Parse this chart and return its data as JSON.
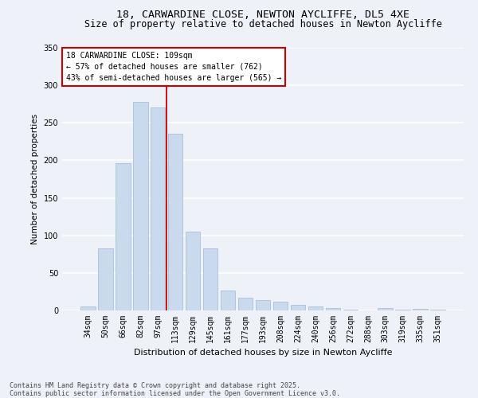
{
  "title1": "18, CARWARDINE CLOSE, NEWTON AYCLIFFE, DL5 4XE",
  "title2": "Size of property relative to detached houses in Newton Aycliffe",
  "xlabel": "Distribution of detached houses by size in Newton Aycliffe",
  "ylabel": "Number of detached properties",
  "categories": [
    "34sqm",
    "50sqm",
    "66sqm",
    "82sqm",
    "97sqm",
    "113sqm",
    "129sqm",
    "145sqm",
    "161sqm",
    "177sqm",
    "193sqm",
    "208sqm",
    "224sqm",
    "240sqm",
    "256sqm",
    "272sqm",
    "288sqm",
    "303sqm",
    "319sqm",
    "335sqm",
    "351sqm"
  ],
  "values": [
    5,
    83,
    196,
    278,
    270,
    235,
    105,
    83,
    26,
    17,
    14,
    12,
    7,
    5,
    3,
    1,
    0,
    3,
    1,
    2,
    1
  ],
  "bar_color": "#c9d9ee",
  "bar_edge_color": "#a0b8d8",
  "vline_x": 4.5,
  "vline_color": "#cc0000",
  "annotation_text": "18 CARWARDINE CLOSE: 109sqm\n← 57% of detached houses are smaller (762)\n43% of semi-detached houses are larger (565) →",
  "annotation_box_color": "#ffffff",
  "annotation_box_edge": "#cc0000",
  "ylim": [
    0,
    350
  ],
  "yticks": [
    0,
    50,
    100,
    150,
    200,
    250,
    300,
    350
  ],
  "footer": "Contains HM Land Registry data © Crown copyright and database right 2025.\nContains public sector information licensed under the Open Government Licence v3.0.",
  "background_color": "#eef2f8",
  "grid_color": "#ffffff",
  "title_fontsize": 9.5,
  "subtitle_fontsize": 8.5,
  "tick_fontsize": 7,
  "ylabel_fontsize": 7.5,
  "xlabel_fontsize": 8,
  "footer_fontsize": 6,
  "annotation_fontsize": 7
}
